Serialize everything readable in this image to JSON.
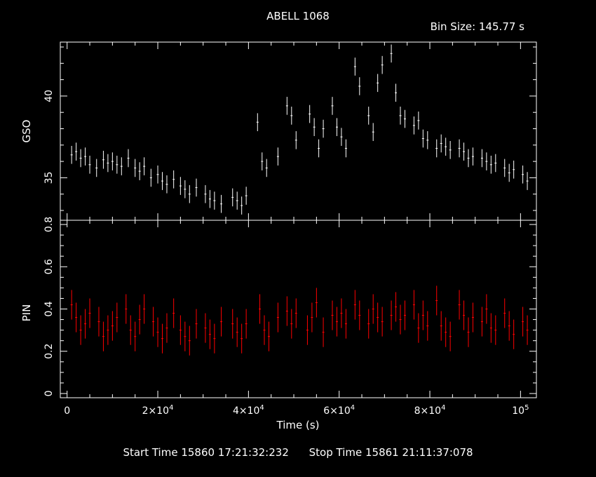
{
  "header": {
    "title": "ABELL 1068",
    "bin_size": "Bin Size: 145.77 s"
  },
  "footer": {
    "start_time": "Start Time 15860 17:21:32:232",
    "stop_time": "Stop Time 15861 21:11:37:078"
  },
  "colors": {
    "background": "#000000",
    "axes": "#ffffff",
    "gso_series": "#ffffff",
    "pin_series": "#ff0000"
  },
  "chart_data": [
    {
      "type": "scatter",
      "panel": "top",
      "ylabel": "GSO",
      "ylim": [
        32.4,
        43.3
      ],
      "yticks": [
        35,
        40
      ],
      "xlim": [
        -1500,
        103500
      ],
      "series": [
        {
          "color": "#ffffff",
          "x": [
            1000,
            2000,
            3000,
            4000,
            5000,
            6500,
            8000,
            9000,
            10000,
            11000,
            12000,
            13500,
            15000,
            16000,
            17000,
            18500,
            20000,
            21000,
            22000,
            23500,
            25000,
            26000,
            27000,
            28500,
            30500,
            31500,
            32500,
            34000,
            36500,
            37500,
            38500,
            39500,
            42000,
            43000,
            44000,
            46500,
            48500,
            49500,
            50500,
            53500,
            54500,
            55500,
            56500,
            58500,
            59500,
            60500,
            61500,
            63500,
            64500,
            66500,
            67500,
            68500,
            69500,
            71500,
            72500,
            73500,
            74500,
            76500,
            77500,
            78500,
            79500,
            81500,
            82500,
            83500,
            84500,
            86500,
            87500,
            88500,
            89500,
            91500,
            92500,
            93500,
            94500,
            96500,
            97500,
            98500,
            100500,
            101500
          ],
          "y": [
            36.4,
            36.6,
            36.2,
            36.3,
            35.8,
            35.6,
            36.1,
            35.9,
            36.0,
            35.8,
            35.7,
            36.2,
            35.6,
            35.4,
            35.7,
            35.0,
            35.2,
            34.8,
            34.6,
            34.9,
            34.5,
            34.3,
            34.0,
            34.4,
            34.0,
            33.7,
            33.6,
            33.4,
            33.8,
            33.6,
            33.3,
            33.9,
            38.4,
            36.0,
            35.6,
            36.3,
            39.4,
            38.8,
            37.3,
            38.9,
            38.1,
            36.8,
            38.0,
            39.4,
            38.1,
            37.5,
            36.8,
            41.8,
            40.6,
            38.8,
            37.8,
            40.8,
            41.9,
            42.6,
            40.2,
            38.8,
            38.6,
            38.2,
            38.5,
            37.4,
            37.3,
            36.8,
            37.1,
            36.9,
            36.7,
            36.8,
            36.6,
            36.2,
            36.3,
            36.2,
            36.0,
            35.8,
            35.9,
            35.6,
            35.3,
            35.5,
            35.2,
            34.8
          ]
        }
      ]
    },
    {
      "type": "scatter",
      "panel": "bottom",
      "ylabel": "PIN",
      "xlabel": "Time (s)",
      "ylim": [
        -0.02,
        0.82
      ],
      "yticks": [
        0,
        0.2,
        0.4,
        0.6,
        0.8
      ],
      "xlim": [
        -1500,
        103500
      ],
      "xticks": [
        0,
        20000,
        40000,
        60000,
        80000,
        100000
      ],
      "xtick_labels": [
        "0",
        "2×10^4",
        "4×10^4",
        "6×10^4",
        "8×10^4",
        "10^5"
      ],
      "series": [
        {
          "color": "#ff0000",
          "x": [
            1000,
            2000,
            3000,
            4000,
            5000,
            7000,
            8000,
            9000,
            10000,
            11000,
            13000,
            14000,
            15000,
            16000,
            17000,
            19000,
            20000,
            21000,
            22000,
            23500,
            25000,
            26000,
            27000,
            28500,
            30500,
            31500,
            32500,
            34000,
            36500,
            37500,
            38500,
            39500,
            42500,
            43500,
            44500,
            46500,
            48500,
            49500,
            50500,
            53000,
            54000,
            55000,
            56500,
            58500,
            59500,
            60500,
            61500,
            63500,
            64500,
            66500,
            67500,
            68500,
            69500,
            71500,
            72500,
            73500,
            74500,
            76500,
            77500,
            78500,
            79500,
            81500,
            82500,
            83500,
            84500,
            86500,
            87500,
            88500,
            89500,
            91500,
            92500,
            93500,
            94500,
            96500,
            97500,
            98500,
            100500,
            101500
          ],
          "y": [
            0.42,
            0.36,
            0.3,
            0.33,
            0.38,
            0.34,
            0.27,
            0.3,
            0.32,
            0.36,
            0.4,
            0.3,
            0.27,
            0.35,
            0.4,
            0.34,
            0.29,
            0.26,
            0.31,
            0.38,
            0.3,
            0.27,
            0.25,
            0.33,
            0.31,
            0.28,
            0.26,
            0.34,
            0.33,
            0.29,
            0.26,
            0.33,
            0.4,
            0.3,
            0.27,
            0.36,
            0.39,
            0.33,
            0.38,
            0.3,
            0.36,
            0.43,
            0.29,
            0.37,
            0.34,
            0.38,
            0.33,
            0.42,
            0.37,
            0.33,
            0.4,
            0.36,
            0.34,
            0.37,
            0.41,
            0.35,
            0.37,
            0.42,
            0.31,
            0.37,
            0.32,
            0.44,
            0.32,
            0.29,
            0.27,
            0.42,
            0.37,
            0.29,
            0.36,
            0.34,
            0.4,
            0.31,
            0.3,
            0.38,
            0.32,
            0.28,
            0.34,
            0.3
          ]
        }
      ]
    }
  ]
}
